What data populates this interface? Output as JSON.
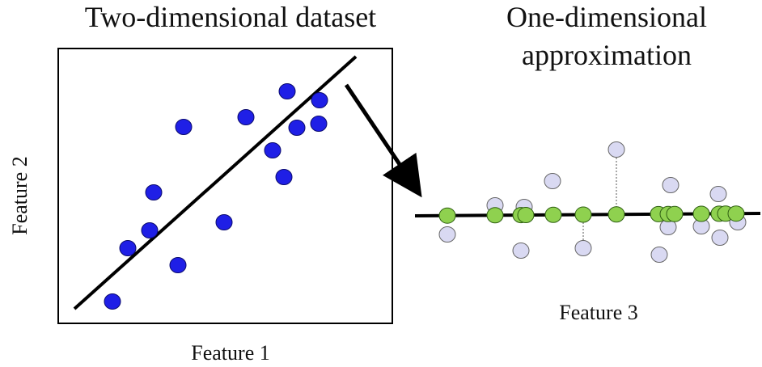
{
  "left_panel": {
    "title": "Two-dimensional dataset",
    "xlabel": "Feature 1",
    "ylabel": "Feature 2"
  },
  "right_panel": {
    "title_line1": "One-dimensional",
    "title_line2": "approximation",
    "xlabel": "Feature 3"
  },
  "colors": {
    "original_points": "#1f1fe6",
    "projected_points": "#8fd14f",
    "residual_points": "#d9d9f2",
    "line": "#000000"
  }
}
